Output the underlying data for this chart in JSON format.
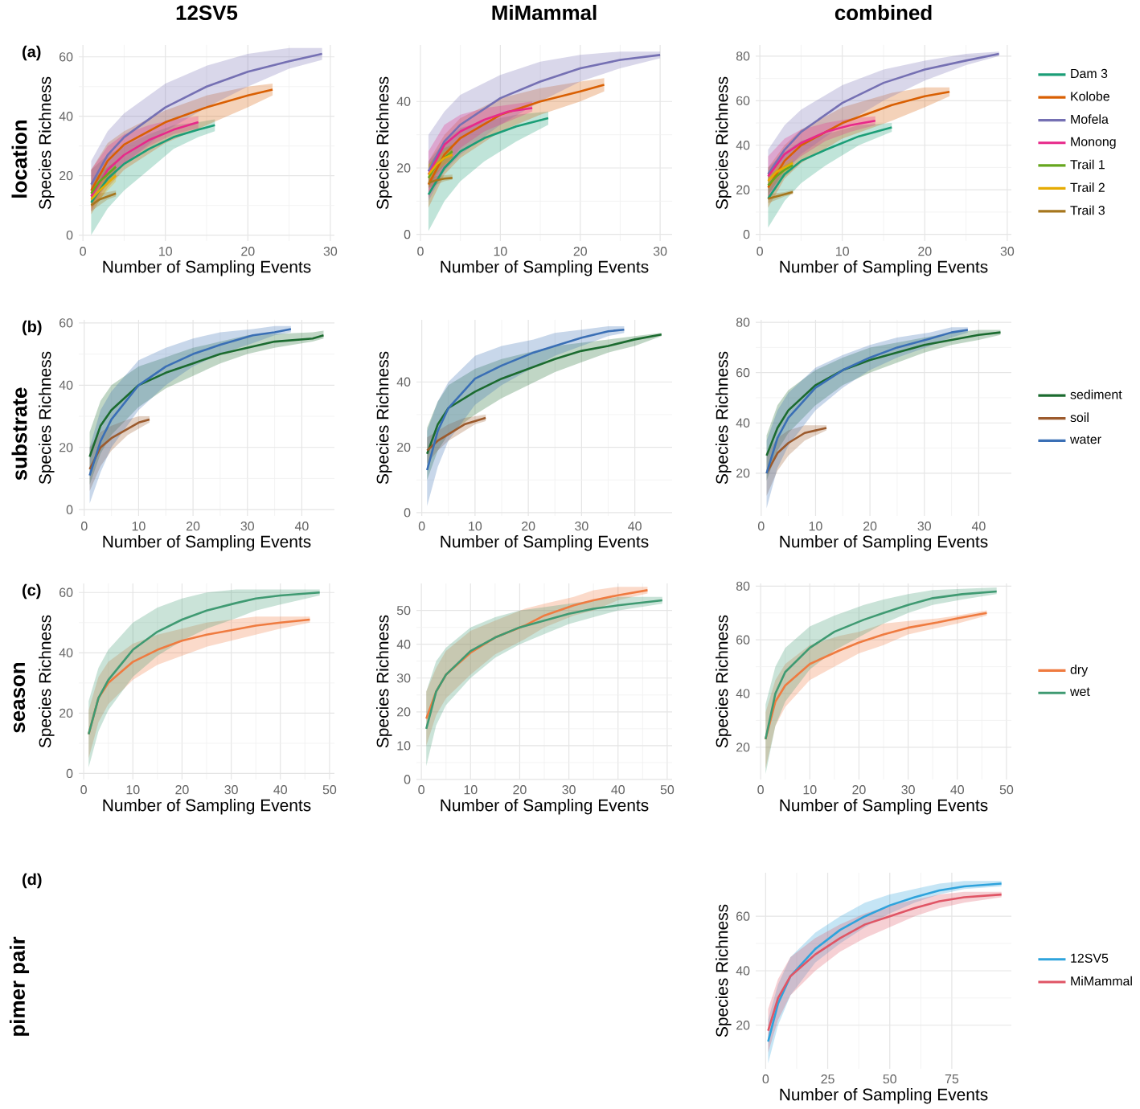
{
  "chart_data": [
    {
      "type": "line",
      "title": "12SV5",
      "xlabel": "Number of Sampling Events",
      "ylabel": "Species Richness",
      "annotations": [
        "(a)",
        "location"
      ],
      "xlim": [
        -0.5,
        30.5
      ],
      "ylim": [
        -2,
        64
      ],
      "xticks": [
        0,
        10,
        20,
        30
      ],
      "yticks": [
        0,
        20,
        40,
        60
      ],
      "grid": true,
      "series": [
        {
          "color": "#1b9e77",
          "x": [
            1,
            3,
            5,
            8,
            11,
            14,
            16
          ],
          "values": [
            11,
            19,
            24,
            29,
            33,
            35.5,
            37
          ],
          "lower": [
            0,
            9,
            15,
            22,
            29,
            33,
            35
          ],
          "upper": [
            22,
            27,
            30,
            34,
            37,
            38,
            39
          ]
        },
        {
          "color": "#d95f02",
          "x": [
            1,
            3,
            5,
            10,
            15,
            20,
            23
          ],
          "values": [
            15,
            25,
            30.5,
            38,
            43,
            47,
            49
          ],
          "lower": [
            7,
            16,
            22,
            31,
            37,
            43,
            47
          ],
          "upper": [
            22,
            31,
            35,
            42,
            47,
            50,
            51
          ]
        },
        {
          "color": "#7570b3",
          "x": [
            1,
            3,
            5,
            10,
            15,
            20,
            25,
            29
          ],
          "values": [
            17,
            27,
            33,
            43,
            50,
            55,
            58.5,
            61
          ],
          "lower": [
            10,
            18,
            24,
            35,
            43,
            50,
            56,
            59
          ],
          "upper": [
            25,
            35,
            41,
            51,
            57,
            61,
            63,
            63
          ]
        },
        {
          "color": "#e7298a",
          "x": [
            1,
            3,
            5,
            8,
            11,
            14
          ],
          "values": [
            13,
            22,
            27,
            32,
            35.5,
            38
          ],
          "lower": [
            8,
            18,
            24,
            30,
            34,
            36
          ],
          "upper": [
            22,
            30,
            34,
            37,
            39,
            40
          ]
        },
        {
          "color": "#66a61e",
          "x": [
            1,
            2,
            3,
            4
          ],
          "values": [
            14,
            18,
            20.5,
            23
          ],
          "lower": [
            10,
            14,
            17,
            20
          ],
          "upper": [
            18,
            21,
            23,
            25
          ]
        },
        {
          "color": "#e6ab02",
          "x": [
            1,
            2,
            3,
            4
          ],
          "values": [
            12,
            15,
            17.5,
            20
          ],
          "lower": [
            9,
            12,
            15,
            18
          ],
          "upper": [
            16,
            18,
            20,
            22
          ]
        },
        {
          "color": "#a6761d",
          "x": [
            1,
            2,
            3,
            4
          ],
          "values": [
            10,
            12,
            13,
            14
          ],
          "lower": [
            8,
            10,
            12,
            13
          ],
          "upper": [
            12,
            14,
            14.5,
            15
          ]
        }
      ]
    },
    {
      "type": "line",
      "title": "MiMammal",
      "xlabel": "Number of Sampling Events",
      "ylabel": "Species Richness",
      "xlim": [
        -0.5,
        31.5
      ],
      "ylim": [
        -2,
        57
      ],
      "xticks": [
        0,
        10,
        20,
        30
      ],
      "yticks": [
        0,
        20,
        40
      ],
      "grid": true,
      "series": [
        {
          "color": "#1b9e77",
          "x": [
            1,
            3,
            5,
            8,
            12,
            16
          ],
          "values": [
            12,
            20,
            25,
            29,
            32.5,
            35
          ],
          "lower": [
            1,
            10,
            16,
            22,
            28,
            33
          ],
          "upper": [
            22,
            28,
            32,
            34,
            36,
            37
          ]
        },
        {
          "color": "#d95f02",
          "x": [
            1,
            3,
            5,
            10,
            15,
            20,
            23
          ],
          "values": [
            15,
            24,
            29,
            36,
            40,
            43,
            45
          ],
          "lower": [
            8,
            18,
            23,
            31,
            36,
            40,
            43
          ],
          "upper": [
            22,
            30,
            35,
            41,
            44,
            46,
            47
          ]
        },
        {
          "color": "#7570b3",
          "x": [
            1,
            3,
            5,
            10,
            15,
            20,
            25,
            30
          ],
          "values": [
            19,
            28,
            33,
            41,
            46,
            50,
            52.5,
            54
          ],
          "lower": [
            10,
            19,
            24,
            33,
            40,
            46,
            50,
            53
          ],
          "upper": [
            30,
            37,
            42,
            48,
            52,
            54,
            55,
            55
          ]
        },
        {
          "color": "#e7298a",
          "x": [
            1,
            3,
            5,
            8,
            11,
            14
          ],
          "values": [
            18,
            27,
            31,
            34.5,
            37,
            38
          ],
          "lower": [
            11,
            20,
            26,
            31,
            34,
            37
          ],
          "upper": [
            25,
            33,
            36,
            38,
            39,
            40
          ]
        },
        {
          "color": "#66a61e",
          "x": [
            1,
            2,
            3,
            4
          ],
          "values": [
            17,
            21,
            23,
            25
          ],
          "lower": [
            14,
            18,
            21,
            23
          ],
          "upper": [
            21,
            24,
            26,
            27
          ]
        },
        {
          "color": "#e6ab02",
          "x": [
            1,
            2,
            3,
            4
          ],
          "values": [
            18,
            21,
            23,
            24
          ],
          "lower": [
            15,
            19,
            21,
            22
          ],
          "upper": [
            21,
            23,
            25,
            26
          ]
        },
        {
          "color": "#a6761d",
          "x": [
            1,
            2,
            3,
            4
          ],
          "values": [
            15.5,
            16.3,
            16.8,
            17
          ],
          "lower": [
            14,
            15,
            16,
            16.5
          ],
          "upper": [
            17,
            17.5,
            17.8,
            18
          ]
        }
      ]
    },
    {
      "type": "line",
      "title": "combined",
      "xlabel": "Number of Sampling Events",
      "ylabel": "Species Richness",
      "xlim": [
        -0.5,
        30.5
      ],
      "ylim": [
        -3,
        85
      ],
      "xticks": [
        0,
        10,
        20,
        30
      ],
      "yticks": [
        0,
        20,
        40,
        60,
        80
      ],
      "grid": true,
      "legend": "right",
      "series": [
        {
          "name": "Dam 3",
          "color": "#1b9e77",
          "x": [
            1,
            3,
            5,
            8,
            12,
            16
          ],
          "values": [
            16,
            27,
            33,
            38,
            44,
            48
          ],
          "lower": [
            3,
            15,
            23,
            31,
            40,
            46
          ],
          "upper": [
            30,
            37,
            42,
            45,
            49,
            50
          ]
        },
        {
          "name": "Kolobe",
          "color": "#d95f02",
          "x": [
            1,
            3,
            5,
            10,
            16,
            20,
            23
          ],
          "values": [
            21,
            33,
            40,
            50,
            58,
            62,
            64
          ],
          "lower": [
            12,
            25,
            32,
            43,
            51,
            57,
            62
          ],
          "upper": [
            30,
            40,
            47,
            57,
            63.5,
            66,
            66
          ]
        },
        {
          "name": "Mofela",
          "color": "#7570b3",
          "x": [
            1,
            3,
            5,
            10,
            15,
            20,
            25,
            29
          ],
          "values": [
            27,
            38,
            46,
            59,
            68,
            74,
            78,
            81
          ],
          "lower": [
            16,
            28,
            36,
            49,
            60,
            69,
            76,
            80
          ],
          "upper": [
            38,
            49,
            56,
            67,
            74,
            78,
            81,
            82
          ]
        },
        {
          "name": "Monong",
          "color": "#e7298a",
          "x": [
            1,
            3,
            5,
            8,
            11,
            14
          ],
          "values": [
            26,
            36,
            41,
            46,
            49,
            51
          ],
          "lower": [
            17,
            29,
            35,
            42,
            46,
            49
          ],
          "upper": [
            35,
            43,
            47,
            50,
            52,
            53
          ]
        },
        {
          "name": "Trail 1",
          "color": "#66a61e",
          "x": [
            1,
            2,
            3,
            4
          ],
          "values": [
            22,
            26,
            29,
            31
          ],
          "lower": [
            18,
            23,
            26,
            29
          ],
          "upper": [
            26,
            29,
            31,
            33
          ]
        },
        {
          "name": "Trail 2",
          "color": "#e6ab02",
          "x": [
            1,
            2,
            3,
            4
          ],
          "values": [
            24,
            28,
            30,
            32
          ],
          "lower": [
            20,
            25,
            28,
            30
          ],
          "upper": [
            28,
            31,
            32,
            34
          ]
        },
        {
          "name": "Trail 3",
          "color": "#a6761d",
          "x": [
            1,
            2,
            3,
            4
          ],
          "values": [
            16,
            17,
            18,
            19
          ],
          "lower": [
            14,
            15.5,
            17,
            18
          ],
          "upper": [
            18,
            18.5,
            19,
            20
          ]
        }
      ]
    },
    {
      "type": "line",
      "xlabel": "Number of Sampling Events",
      "ylabel": "Species Richness",
      "annotations": [
        "(b)",
        "substrate"
      ],
      "xlim": [
        -1,
        46
      ],
      "ylim": [
        -2,
        61
      ],
      "xticks": [
        0,
        10,
        20,
        30,
        40
      ],
      "yticks": [
        0,
        20,
        40,
        60
      ],
      "grid": true,
      "series": [
        {
          "color": "#1b6b2f",
          "x": [
            1,
            3,
            5,
            10,
            15,
            20,
            25,
            30,
            35,
            42,
            44
          ],
          "values": [
            17,
            27,
            32,
            40,
            44,
            47,
            50,
            52,
            54,
            55,
            56
          ],
          "lower": [
            8,
            18,
            24,
            33,
            39,
            43,
            47,
            50,
            52,
            54,
            55
          ],
          "upper": [
            25,
            35,
            40,
            46,
            49,
            52,
            54,
            56,
            56.5,
            57,
            57.5
          ]
        },
        {
          "color": "#9c5a2c",
          "x": [
            1,
            3,
            5,
            8,
            10,
            12
          ],
          "values": [
            13,
            20,
            23,
            26,
            28,
            29
          ],
          "lower": [
            6,
            14,
            19,
            24,
            26,
            28
          ],
          "upper": [
            20,
            25,
            27,
            29,
            30,
            30
          ]
        },
        {
          "color": "#3a6fb5",
          "x": [
            1,
            3,
            5,
            10,
            15,
            20,
            25,
            31,
            35,
            38
          ],
          "values": [
            11,
            22,
            29,
            40,
            46,
            50,
            53,
            56,
            57,
            58
          ],
          "lower": [
            2,
            12,
            20,
            32,
            40,
            46,
            50,
            53.5,
            56,
            57
          ],
          "upper": [
            20,
            32,
            38,
            48,
            52,
            55,
            57,
            58,
            59,
            59
          ]
        }
      ]
    },
    {
      "type": "line",
      "xlabel": "Number of Sampling Events",
      "ylabel": "Species Richness",
      "xlim": [
        -1,
        47
      ],
      "ylim": [
        -1,
        59
      ],
      "xticks": [
        0,
        10,
        20,
        30,
        40
      ],
      "yticks": [
        0,
        20,
        40
      ],
      "grid": true,
      "series": [
        {
          "color": "#1b6b2f",
          "x": [
            1,
            3,
            5,
            10,
            15,
            20,
            25,
            30,
            35,
            40,
            45
          ],
          "values": [
            18,
            27,
            32,
            37,
            41,
            44,
            47,
            49.5,
            51,
            53,
            54.5
          ],
          "lower": [
            10,
            19,
            24,
            30,
            35,
            39,
            43,
            46,
            49,
            51,
            54
          ],
          "upper": [
            26,
            34,
            39,
            44,
            47,
            49,
            51,
            52,
            53,
            54,
            55
          ]
        },
        {
          "color": "#9c5a2c",
          "x": [
            1,
            3,
            5,
            8,
            10,
            12
          ],
          "values": [
            19,
            22,
            24,
            27,
            28,
            29
          ],
          "lower": [
            15,
            19,
            22,
            25,
            27,
            28
          ],
          "upper": [
            23,
            25,
            27,
            29,
            29.5,
            30
          ]
        },
        {
          "color": "#3a6fb5",
          "x": [
            1,
            3,
            5,
            10,
            15,
            21,
            25,
            30,
            35,
            38
          ],
          "values": [
            13,
            25,
            32,
            41,
            45,
            49,
            51,
            53.5,
            55.5,
            56
          ],
          "lower": [
            2,
            14,
            22,
            33,
            39,
            44.5,
            48,
            51,
            54,
            55
          ],
          "upper": [
            25,
            34,
            40,
            48,
            51,
            53,
            55,
            56,
            57,
            57
          ]
        }
      ]
    },
    {
      "type": "line",
      "xlabel": "Number of Sampling Events",
      "ylabel": "Species Richness",
      "xlim": [
        -1,
        46
      ],
      "ylim": [
        3,
        81
      ],
      "xticks": [
        0,
        10,
        20,
        30,
        40
      ],
      "yticks": [
        20,
        40,
        60,
        80
      ],
      "grid": true,
      "legend": "right",
      "series": [
        {
          "name": "sediment",
          "color": "#1b6b2f",
          "x": [
            1,
            3,
            5,
            10,
            15,
            20,
            25,
            30,
            35,
            40,
            44
          ],
          "values": [
            27,
            38,
            45,
            55,
            61,
            65,
            68,
            71,
            73,
            75,
            76
          ],
          "lower": [
            17,
            29,
            36,
            47,
            55,
            60,
            64,
            68,
            71,
            73,
            75
          ],
          "upper": [
            35,
            47,
            53,
            61,
            66,
            70,
            72,
            74,
            76,
            77,
            77
          ]
        },
        {
          "name": "soil",
          "color": "#9c5a2c",
          "x": [
            1,
            3,
            5,
            8,
            10,
            12
          ],
          "values": [
            20,
            28,
            32,
            36,
            37,
            38
          ],
          "lower": [
            11,
            21,
            27,
            33,
            35,
            37
          ],
          "upper": [
            28,
            34,
            37,
            39,
            39,
            39
          ]
        },
        {
          "name": "water",
          "color": "#3a6fb5",
          "x": [
            1,
            3,
            5,
            10,
            15,
            20,
            25,
            31,
            35,
            38
          ],
          "values": [
            20,
            34,
            42,
            54,
            61,
            66,
            70,
            73.5,
            76,
            77
          ],
          "lower": [
            6,
            22,
            31,
            45,
            54,
            61,
            66,
            70.5,
            74,
            76
          ],
          "upper": [
            33,
            45,
            52,
            62,
            67,
            71,
            74,
            76,
            78,
            78
          ]
        }
      ]
    },
    {
      "type": "line",
      "xlabel": "Number of Sampling Events",
      "ylabel": "Species Richness",
      "annotations": [
        "(c)",
        "season"
      ],
      "xlim": [
        -1,
        51
      ],
      "ylim": [
        -2,
        63
      ],
      "xticks": [
        0,
        10,
        20,
        30,
        40,
        50
      ],
      "yticks": [
        0,
        20,
        40,
        60
      ],
      "grid": true,
      "series": [
        {
          "color": "#ef7b40",
          "x": [
            1,
            3,
            5,
            10,
            15,
            20,
            25,
            30,
            35,
            40,
            46
          ],
          "values": [
            13,
            25,
            30,
            37,
            41,
            44,
            46,
            47.5,
            49,
            50,
            51
          ],
          "lower": [
            5,
            17,
            23,
            31,
            36,
            39,
            42,
            44,
            46,
            48,
            50
          ],
          "upper": [
            21,
            32,
            37,
            43,
            46,
            48,
            50,
            51,
            52,
            52,
            52
          ]
        },
        {
          "color": "#3f9a72",
          "x": [
            1,
            3,
            5,
            10,
            15,
            20,
            25,
            31,
            35,
            40,
            48
          ],
          "values": [
            13,
            25,
            31,
            41,
            47,
            51,
            54,
            56.5,
            58,
            59,
            60
          ],
          "lower": [
            2,
            14,
            21,
            32,
            39,
            44,
            48,
            51.5,
            54,
            56,
            59
          ],
          "upper": [
            24,
            35,
            41,
            50,
            55,
            58,
            60,
            61,
            61,
            61,
            61
          ]
        }
      ]
    },
    {
      "type": "line",
      "xlabel": "Number of Sampling Events",
      "ylabel": "Species Richness",
      "xlim": [
        -1,
        51
      ],
      "ylim": [
        0,
        58
      ],
      "xticks": [
        0,
        10,
        20,
        30,
        40,
        50
      ],
      "yticks": [
        0,
        10,
        20,
        30,
        40,
        50
      ],
      "grid": true,
      "series": [
        {
          "color": "#ef7b40",
          "x": [
            1,
            3,
            5,
            10,
            15,
            21,
            25,
            31,
            35,
            40,
            46
          ],
          "values": [
            18,
            26,
            31,
            37.5,
            42,
            45.5,
            48.5,
            51.5,
            53,
            54.5,
            56
          ],
          "lower": [
            10,
            19,
            24,
            31,
            37,
            41.5,
            45,
            48.5,
            50,
            53,
            55
          ],
          "upper": [
            26,
            33,
            38,
            44,
            47,
            50.5,
            52,
            54,
            56,
            57,
            57
          ]
        },
        {
          "color": "#3f9a72",
          "x": [
            1,
            3,
            5,
            10,
            15,
            20,
            25,
            30,
            35,
            40,
            49
          ],
          "values": [
            15,
            26,
            31,
            38,
            42,
            45,
            47,
            49,
            50.5,
            51.5,
            53
          ],
          "lower": [
            4,
            16,
            22,
            30,
            36,
            40,
            43,
            46,
            48,
            50,
            52
          ],
          "upper": [
            26,
            35,
            39,
            45,
            48,
            50,
            51,
            52,
            53,
            54,
            54
          ]
        }
      ]
    },
    {
      "type": "line",
      "xlabel": "Number of Sampling Events",
      "ylabel": "Species Richness",
      "xlim": [
        -1,
        51
      ],
      "ylim": [
        8,
        81
      ],
      "xticks": [
        0,
        10,
        20,
        30,
        40,
        50
      ],
      "yticks": [
        20,
        40,
        60,
        80
      ],
      "grid": true,
      "legend": "right",
      "series": [
        {
          "name": "dry",
          "color": "#ef7b40",
          "x": [
            1,
            3,
            5,
            10,
            16,
            20,
            25,
            30,
            36,
            40,
            46
          ],
          "values": [
            23,
            37,
            43,
            51,
            56,
            59,
            62,
            64.5,
            66.5,
            68,
            70
          ],
          "lower": [
            12,
            28,
            35,
            45,
            51,
            55,
            58,
            62,
            64.5,
            66,
            69
          ],
          "upper": [
            33,
            45,
            51,
            58,
            61.5,
            63,
            66,
            67,
            68,
            69,
            71
          ]
        },
        {
          "name": "wet",
          "color": "#3f9a72",
          "x": [
            1,
            3,
            5,
            10,
            15,
            21,
            25,
            30,
            35,
            41,
            48
          ],
          "values": [
            23,
            40,
            48,
            57,
            63,
            67.5,
            70,
            73,
            75.5,
            77,
            78
          ],
          "lower": [
            10,
            28,
            37,
            49,
            56,
            62,
            66,
            70,
            73,
            75,
            77
          ],
          "upper": [
            36,
            50,
            57,
            65,
            69,
            73,
            75,
            77,
            78.5,
            79,
            79.5
          ]
        }
      ]
    },
    {
      "type": "line",
      "xlabel": "Number of Sampling Events",
      "ylabel": "Species Richness",
      "annotations": [
        "(d)",
        "pimer pair"
      ],
      "xlim": [
        -4,
        99
      ],
      "ylim": [
        4,
        76
      ],
      "xticks": [
        0,
        25,
        50,
        75
      ],
      "yticks": [
        20,
        40,
        60
      ],
      "grid": true,
      "legend": "right",
      "series": [
        {
          "name": "12SV5",
          "color": "#2ea3dc",
          "x": [
            1,
            5,
            10,
            20,
            30,
            40,
            50,
            60,
            70,
            80,
            95
          ],
          "values": [
            14,
            28,
            38,
            48,
            55,
            60,
            64,
            67,
            69.5,
            71,
            72
          ],
          "lower": [
            6,
            20,
            31,
            43,
            50,
            56,
            61,
            65,
            68,
            70,
            71
          ],
          "upper": [
            22,
            35,
            45,
            54,
            60,
            65,
            68,
            70,
            72,
            73,
            73
          ]
        },
        {
          "name": "MiMammal",
          "color": "#e05565",
          "x": [
            1,
            5,
            10,
            20,
            30,
            40,
            50,
            60,
            70,
            80,
            95
          ],
          "values": [
            18,
            30,
            38,
            46,
            52,
            57,
            60,
            63,
            65.5,
            67,
            68
          ],
          "lower": [
            10,
            22,
            31,
            40,
            47,
            52,
            56,
            60,
            63,
            65,
            67
          ],
          "upper": [
            26,
            37,
            45,
            52,
            57,
            61,
            64,
            66,
            68,
            69,
            69
          ]
        }
      ]
    }
  ]
}
